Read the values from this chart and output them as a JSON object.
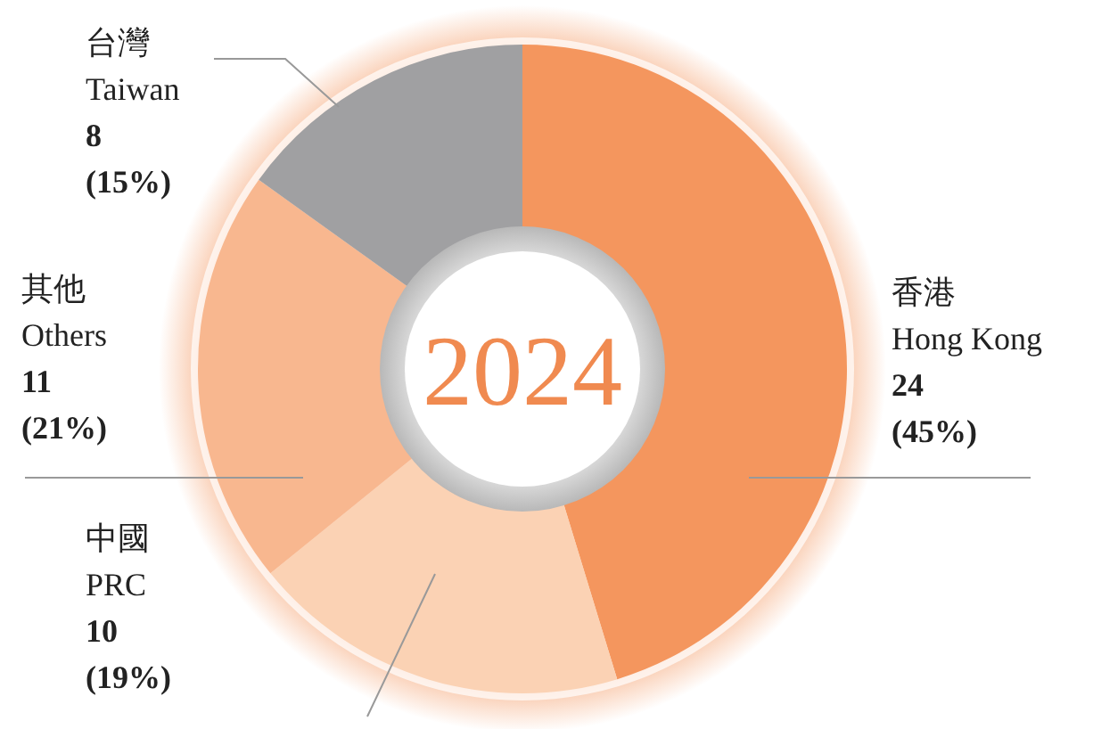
{
  "chart_data": {
    "type": "donut",
    "title": "2024",
    "categories": [
      "香港\nHong Kong",
      "中國\nPRC",
      "其他\nOthers",
      "台灣\nTaiwan"
    ],
    "values": [
      24,
      10,
      11,
      8
    ],
    "colors": [
      "#f4965e",
      "#fbd2b4",
      "#f8b78f",
      "#a0a0a2"
    ],
    "value_labels": [
      "24\n(45%)",
      "10\n(19%)",
      "11\n(21%)",
      "8\n(15%)"
    ]
  }
}
